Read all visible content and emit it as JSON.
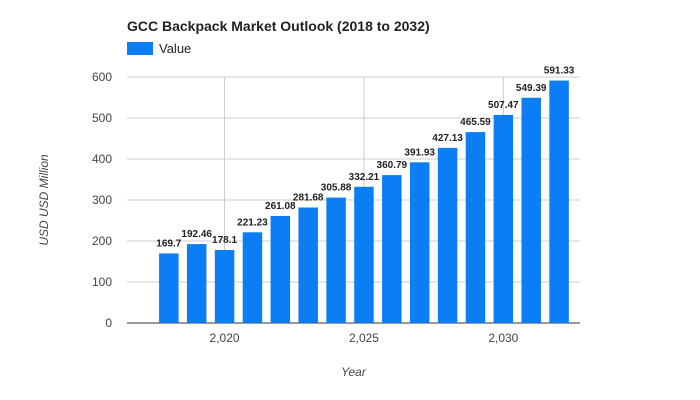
{
  "chart_data": {
    "type": "bar",
    "title": "GCC Backpack Market Outlook (2018 to 2032)",
    "xlabel": "Year",
    "ylabel": "USD USD Million",
    "series": [
      {
        "name": "Value",
        "color": "#0B7EF5",
        "x": [
          2018,
          2019,
          2020,
          2021,
          2022,
          2023,
          2024,
          2025,
          2026,
          2027,
          2028,
          2029,
          2030,
          2031,
          2032
        ],
        "values": [
          169.7,
          192.46,
          178.1,
          221.23,
          261.08,
          281.68,
          305.88,
          332.21,
          360.79,
          391.93,
          427.13,
          465.59,
          507.47,
          549.39,
          591.33
        ],
        "labels": [
          "169.7",
          "192.46",
          "178.1",
          "221.23",
          "261.08",
          "281.68",
          "305.88",
          "332.21",
          "360.79",
          "391.93",
          "427.13",
          "465.59",
          "507.47",
          "549.39",
          "591.33"
        ]
      }
    ],
    "xticks": [
      2020,
      2025,
      2030
    ],
    "xtick_labels": [
      "2,020",
      "2,025",
      "2,030"
    ],
    "yticks": [
      0,
      100,
      200,
      300,
      400,
      500,
      600
    ],
    "ytick_labels": [
      "0",
      "100",
      "200",
      "300",
      "400",
      "500",
      "600"
    ],
    "ylim": [
      0,
      600
    ],
    "xlim": [
      2016.5,
      2032.75
    ],
    "grid": true,
    "legend_position": "top-left"
  }
}
